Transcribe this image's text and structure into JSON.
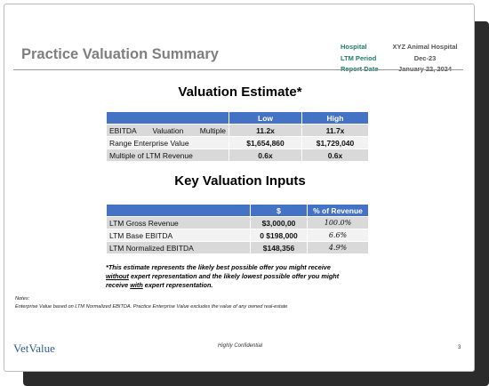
{
  "header": {
    "title": "Practice Valuation Summary",
    "info": [
      {
        "label": "Hospital",
        "value": "XYZ Animal Hospital"
      },
      {
        "label": "LTM Period",
        "value": "Dec-23"
      },
      {
        "label": "Report Date",
        "value": "January 22, 2024"
      }
    ]
  },
  "valuation_estimate": {
    "title": "Valuation Estimate*",
    "columns": [
      "Low",
      "High"
    ],
    "rows": [
      {
        "label": "EBITDA Valuation Multiple",
        "values": [
          "11.2x",
          "11.7x"
        ]
      },
      {
        "label": "Range Enterprise Value",
        "values": [
          "$1,654,860",
          "$1,729,040"
        ]
      },
      {
        "label": "Multiple of LTM Revenue",
        "values": [
          "0.6x",
          "0.6x"
        ]
      }
    ]
  },
  "key_inputs": {
    "title": "Key Valuation Inputs",
    "columns": [
      "$",
      "% of Revenue"
    ],
    "rows": [
      {
        "label": "LTM Gross Revenue",
        "values": [
          "$3,000,00",
          "100.0%"
        ]
      },
      {
        "label": "LTM Base EBITDA",
        "values": [
          "0 $198,000",
          "6.6%"
        ]
      },
      {
        "label": "LTM Normalized EBITDA",
        "values": [
          "$148,356",
          "4.9%"
        ]
      }
    ]
  },
  "footnote": [
    "*This estimate represents the likely best possible offer you might receive",
    "without",
    " expert representation and the likely lowest possible offer you might",
    "receive ",
    "with",
    " expert representation."
  ],
  "notes": {
    "heading": "Notes:",
    "text": "Enterprise Value based on LTM Normalized EBITDA. Practice Enterprise Value excludes the value of any owned real-estate"
  },
  "footer": {
    "logo": "VetValue",
    "confidential": "Highly Confidential",
    "page": "3"
  }
}
